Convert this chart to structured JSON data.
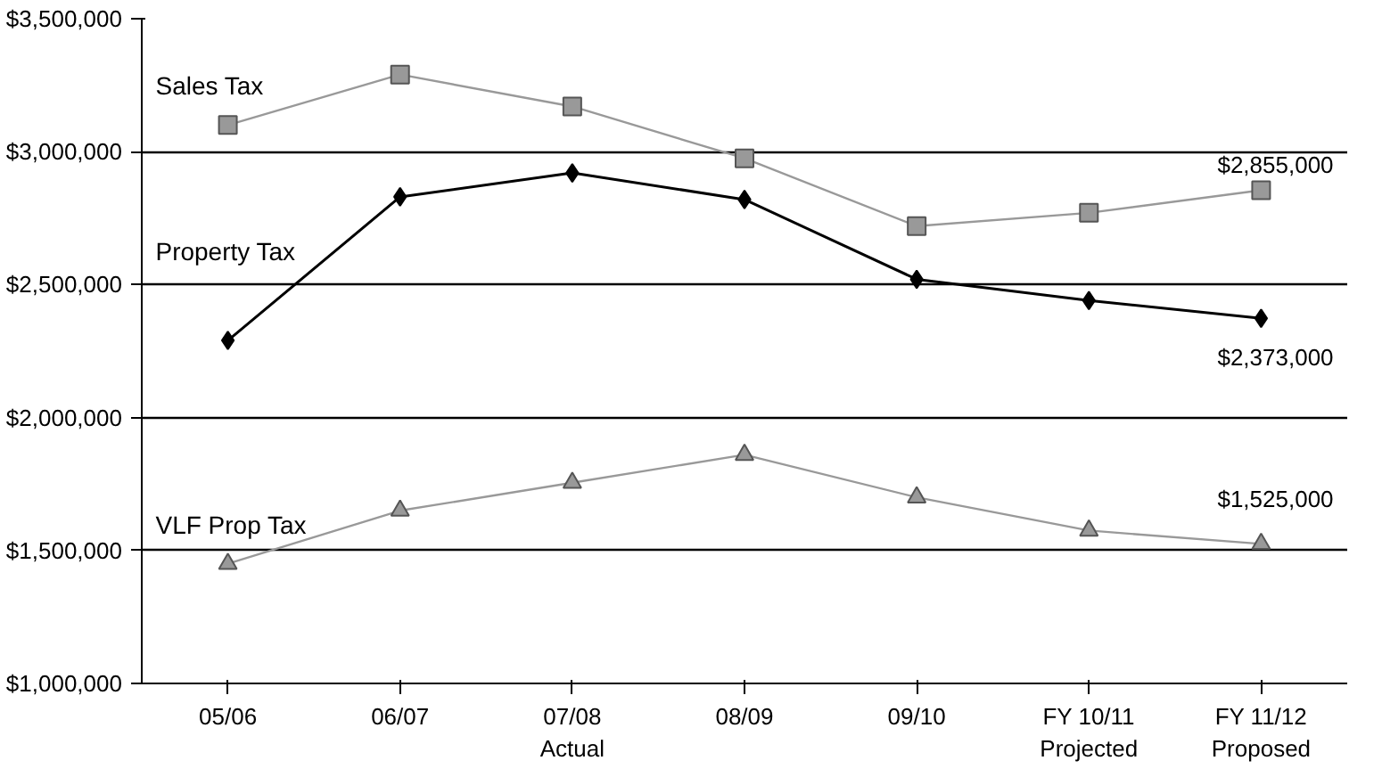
{
  "chart_data": {
    "type": "line",
    "categories": [
      "05/06",
      "06/07",
      "07/08\nActual",
      "08/09",
      "09/10",
      "FY 10/11\nProjected",
      "FY 11/12\nProposed"
    ],
    "series": [
      {
        "name": "Sales Tax",
        "color": "#999999",
        "marker": "square",
        "values": [
          3100000,
          3290000,
          3170000,
          2975000,
          2720000,
          2770000,
          2855000
        ],
        "value_labels": [
          null,
          null,
          null,
          null,
          null,
          null,
          "$2,855,000"
        ]
      },
      {
        "name": "Property Tax",
        "color": "#000000",
        "marker": "diamond",
        "values": [
          2290000,
          2830000,
          2920000,
          2820000,
          2520000,
          2440000,
          2373000
        ],
        "value_labels": [
          null,
          null,
          null,
          null,
          null,
          null,
          "$2,373,000"
        ]
      },
      {
        "name": "VLF Prop Tax",
        "color": "#999999",
        "marker": "triangle",
        "values": [
          1450000,
          1650000,
          1755000,
          1860000,
          1700000,
          1575000,
          1525000
        ],
        "value_labels": [
          null,
          null,
          null,
          null,
          null,
          null,
          "$1,525,000"
        ]
      }
    ],
    "ylim": [
      1000000,
      3500000
    ],
    "yticks": [
      {
        "value": 1000000,
        "label": "$1,000,000"
      },
      {
        "value": 1500000,
        "label": "$1,500,000"
      },
      {
        "value": 2000000,
        "label": "$2,000,000"
      },
      {
        "value": 2500000,
        "label": "$2,500,000"
      },
      {
        "value": 3000000,
        "label": "$3,000,000"
      },
      {
        "value": 3500000,
        "label": "$3,500,000"
      }
    ],
    "grid": "y",
    "line_style": "solid"
  }
}
